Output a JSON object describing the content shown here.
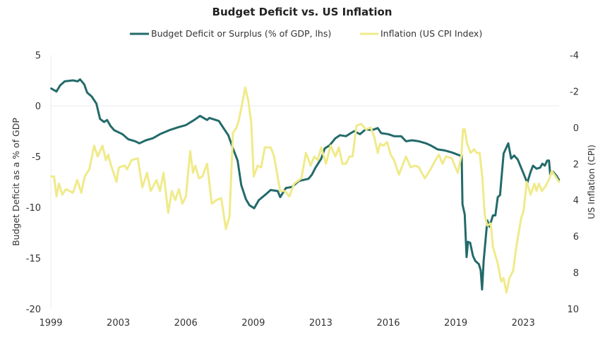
{
  "chart_data": {
    "type": "line",
    "title": "Budget Deficit vs. US Inflation",
    "ylabel": "Budget Deficit as a % of GDP",
    "ylabel_right": "US Inflation (CPI)",
    "xlim": [
      2000,
      2025.2
    ],
    "ylim": [
      -20,
      5
    ],
    "ylim_right": [
      10,
      -4
    ],
    "right_axis_inverted": true,
    "grid": "zero line only",
    "legend_position": "top",
    "x_tick_labels": [
      "1999",
      "2003",
      "2006",
      "2009",
      "2013",
      "2016",
      "2019",
      "2023"
    ],
    "y_ticks": [
      5,
      0,
      -5,
      -10,
      -15,
      -20
    ],
    "y_ticks_right": [
      -4,
      -2,
      0,
      2,
      4,
      6,
      8,
      10
    ],
    "series": [
      {
        "name": "Budget Deficit or Surplus (% of GDP, lhs)",
        "axis": "left",
        "color": "#236a6a",
        "x": [
          2000.02,
          2000.28,
          2000.46,
          2000.69,
          2001.1,
          2001.33,
          2001.45,
          2001.66,
          2001.8,
          2002.03,
          2002.26,
          2002.44,
          2002.64,
          2002.79,
          2002.96,
          2003.14,
          2003.55,
          2003.84,
          2004.19,
          2004.39,
          2004.71,
          2005.06,
          2005.41,
          2005.88,
          2006.35,
          2006.7,
          2007.11,
          2007.4,
          2007.75,
          2007.86,
          2008.33,
          2008.56,
          2008.8,
          2009.03,
          2009.26,
          2009.44,
          2009.67,
          2009.85,
          2010.08,
          2010.31,
          2010.67,
          2010.9,
          2011.25,
          2011.37,
          2011.66,
          2011.95,
          2012.3,
          2012.77,
          2012.94,
          2013.12,
          2013.41,
          2013.58,
          2013.82,
          2014.11,
          2014.34,
          2014.63,
          2014.87,
          2015.04,
          2015.33,
          2015.62,
          2015.92,
          2016.21,
          2016.38,
          2016.73,
          2017.02,
          2017.37,
          2017.61,
          2017.9,
          2018.25,
          2018.6,
          2018.83,
          2019.18,
          2019.53,
          2019.88,
          2020.29,
          2020.37,
          2020.41,
          2020.52,
          2020.61,
          2020.68,
          2020.79,
          2020.93,
          2021.05,
          2021.22,
          2021.31,
          2021.38,
          2021.46,
          2021.64,
          2021.75,
          2021.92,
          2022.04,
          2022.16,
          2022.27,
          2022.45,
          2022.68,
          2022.82,
          2022.97,
          2023.15,
          2023.38,
          2023.62,
          2023.79,
          2023.91,
          2024.08,
          2024.26,
          2024.37,
          2024.49,
          2024.61,
          2024.7,
          2024.76,
          2024.9,
          2025.07,
          2025.19
        ],
        "values": [
          1.7,
          1.4,
          2.0,
          2.4,
          2.5,
          2.4,
          2.6,
          2.1,
          1.3,
          0.9,
          0.2,
          -1.3,
          -1.6,
          -1.4,
          -2.0,
          -2.4,
          -2.8,
          -3.3,
          -3.5,
          -3.7,
          -3.4,
          -3.2,
          -2.8,
          -2.4,
          -2.1,
          -1.9,
          -1.4,
          -1.0,
          -1.4,
          -1.2,
          -1.5,
          -2.2,
          -2.9,
          -4.2,
          -5.4,
          -7.8,
          -9.2,
          -9.8,
          -10.1,
          -9.3,
          -8.7,
          -8.3,
          -8.4,
          -9.0,
          -8.1,
          -8.0,
          -7.4,
          -7.2,
          -6.8,
          -6.1,
          -5.2,
          -4.2,
          -3.9,
          -3.2,
          -2.9,
          -3.0,
          -2.7,
          -2.5,
          -2.8,
          -2.3,
          -2.4,
          -2.2,
          -2.7,
          -2.8,
          -3.0,
          -3.0,
          -3.5,
          -3.4,
          -3.5,
          -3.7,
          -3.9,
          -4.3,
          -4.4,
          -4.6,
          -4.9,
          -4.9,
          -9.7,
          -10.7,
          -14.9,
          -13.4,
          -13.5,
          -14.8,
          -15.3,
          -15.6,
          -16.2,
          -18.1,
          -15.3,
          -11.3,
          -11.9,
          -10.8,
          -10.8,
          -9.0,
          -8.8,
          -4.7,
          -3.7,
          -5.2,
          -4.9,
          -5.3,
          -6.4,
          -7.6,
          -6.5,
          -5.9,
          -6.2,
          -6.1,
          -5.7,
          -5.9,
          -5.4,
          -5.4,
          -6.8,
          -6.5,
          -6.9,
          -7.3
        ]
      },
      {
        "name": "Inflation (US CPI Index)",
        "axis": "right",
        "color": "#f0ea8a",
        "x": [
          2000.02,
          2000.16,
          2000.28,
          2000.4,
          2000.57,
          2000.75,
          2001.1,
          2001.31,
          2001.51,
          2001.68,
          2001.91,
          2002.15,
          2002.32,
          2002.56,
          2002.73,
          2002.85,
          2002.96,
          2003.26,
          2003.37,
          2003.66,
          2003.78,
          2004.01,
          2004.31,
          2004.54,
          2004.77,
          2004.95,
          2005.24,
          2005.41,
          2005.59,
          2005.82,
          2006.0,
          2006.17,
          2006.35,
          2006.52,
          2006.7,
          2006.91,
          2007.05,
          2007.16,
          2007.34,
          2007.51,
          2007.75,
          2007.98,
          2008.21,
          2008.45,
          2008.68,
          2008.86,
          2009.03,
          2009.21,
          2009.32,
          2009.56,
          2009.64,
          2009.79,
          2009.94,
          2010.06,
          2010.26,
          2010.43,
          2010.61,
          2010.9,
          2011.07,
          2011.37,
          2011.6,
          2011.83,
          2012.06,
          2012.42,
          2012.65,
          2012.88,
          2013.06,
          2013.23,
          2013.41,
          2013.64,
          2013.87,
          2014.11,
          2014.28,
          2014.46,
          2014.63,
          2014.81,
          2014.96,
          2015.16,
          2015.39,
          2015.62,
          2015.86,
          2016.03,
          2016.21,
          2016.32,
          2016.5,
          2016.67,
          2016.85,
          2017.02,
          2017.26,
          2017.61,
          2017.84,
          2018.07,
          2018.25,
          2018.54,
          2018.83,
          2019.07,
          2019.24,
          2019.42,
          2019.59,
          2019.88,
          2020.17,
          2020.35,
          2020.44,
          2020.52,
          2020.64,
          2020.81,
          2020.99,
          2021.11,
          2021.26,
          2021.4,
          2021.51,
          2021.63,
          2021.81,
          2021.92,
          2022.16,
          2022.33,
          2022.45,
          2022.59,
          2022.74,
          2022.92,
          2023.09,
          2023.32,
          2023.44,
          2023.59,
          2023.79,
          2023.97,
          2024.08,
          2024.2,
          2024.35,
          2024.55,
          2024.72,
          2024.84,
          2025.02,
          2025.19
        ],
        "values": [
          2.7,
          2.7,
          3.8,
          3.1,
          3.7,
          3.4,
          3.6,
          2.9,
          3.6,
          2.7,
          2.3,
          1.0,
          1.6,
          1.0,
          1.8,
          1.5,
          2.0,
          3.0,
          2.2,
          2.1,
          2.3,
          1.8,
          1.7,
          3.3,
          2.5,
          3.5,
          2.9,
          3.5,
          2.5,
          4.7,
          3.5,
          4.0,
          3.4,
          4.2,
          3.8,
          1.3,
          2.5,
          2.1,
          2.8,
          2.7,
          2.0,
          4.2,
          4.0,
          3.9,
          5.6,
          4.9,
          0.3,
          0.0,
          -0.4,
          -1.7,
          -2.2,
          -1.5,
          -0.2,
          2.7,
          2.1,
          2.2,
          1.1,
          1.1,
          1.6,
          3.5,
          3.5,
          3.8,
          3.1,
          2.8,
          1.4,
          2.1,
          1.6,
          1.8,
          1.1,
          2.0,
          1.0,
          1.6,
          1.1,
          2.0,
          2.0,
          1.6,
          1.6,
          -0.1,
          -0.2,
          0.1,
          0.0,
          0.5,
          1.4,
          0.9,
          1.0,
          0.8,
          1.5,
          1.8,
          2.6,
          1.6,
          2.2,
          2.1,
          2.2,
          2.8,
          2.3,
          1.8,
          1.5,
          2.0,
          1.6,
          1.7,
          2.5,
          1.6,
          0.1,
          0.1,
          0.9,
          1.4,
          1.2,
          1.4,
          1.4,
          2.8,
          4.8,
          5.4,
          5.3,
          6.6,
          7.5,
          8.5,
          8.3,
          9.1,
          8.3,
          7.9,
          6.5,
          5.0,
          4.6,
          3.0,
          3.7,
          3.1,
          3.5,
          3.1,
          3.5,
          3.2,
          2.8,
          2.4,
          2.7,
          3.0
        ]
      }
    ]
  }
}
